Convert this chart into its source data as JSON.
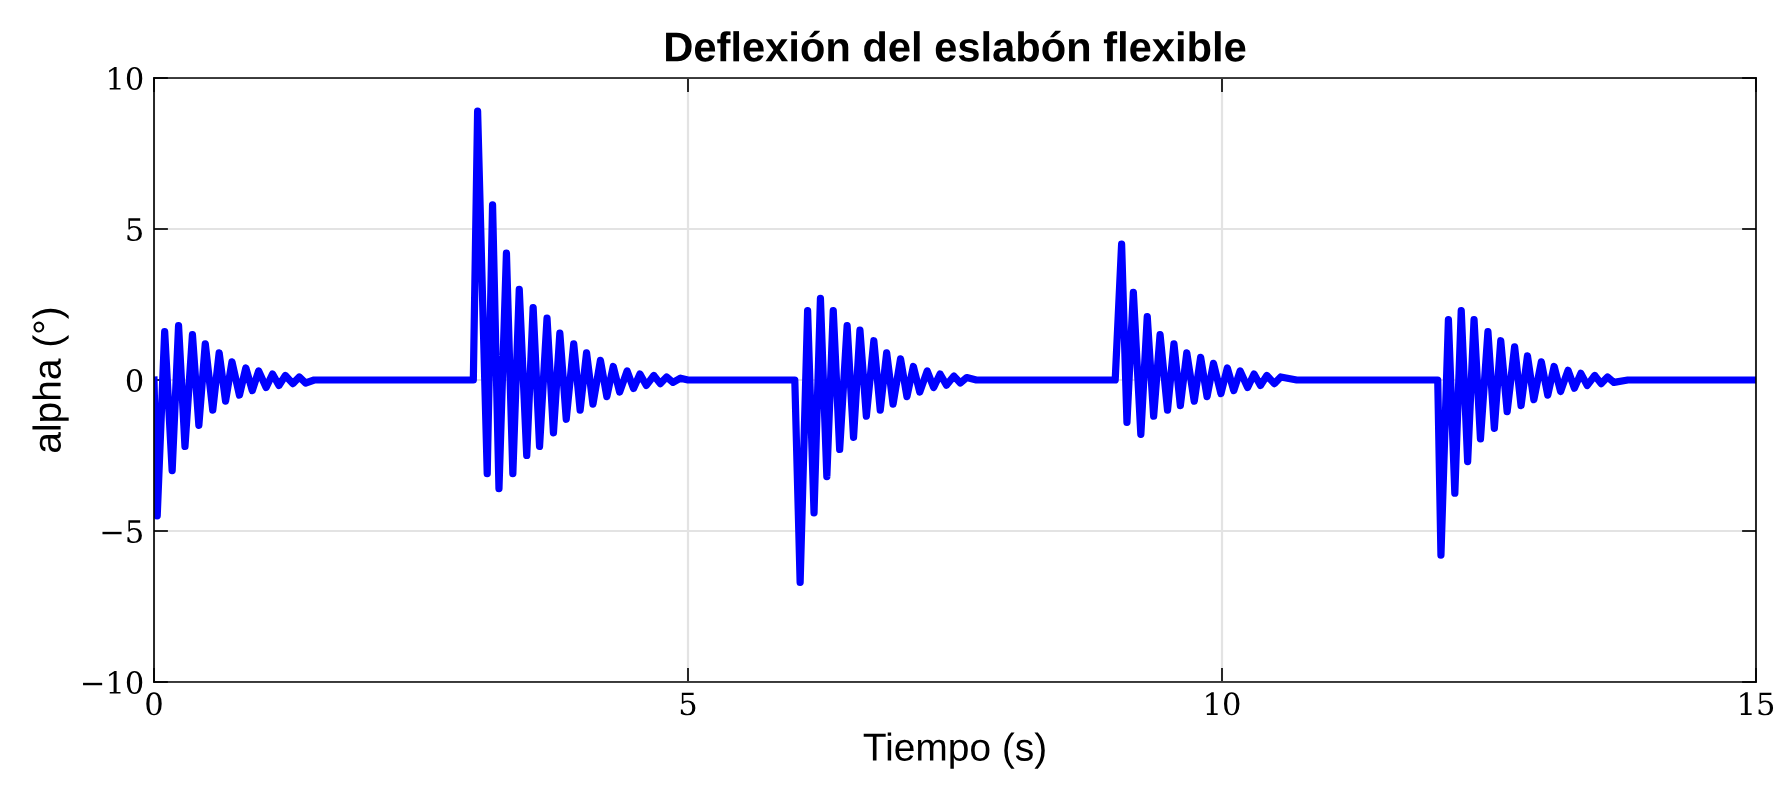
{
  "chart_data": {
    "type": "line",
    "title": "Deflexión del eslabón flexible",
    "xlabel": "Tiempo (s)",
    "ylabel": "alpha (°)",
    "xlim": [
      0,
      15
    ],
    "ylim": [
      -10,
      10
    ],
    "xticks": [
      0,
      5,
      10,
      15
    ],
    "yticks": [
      {
        "value": -10,
        "label": "−10"
      },
      {
        "value": -5,
        "label": "−5"
      },
      0,
      5,
      10
    ],
    "grid": true,
    "legend": false,
    "marker": "none",
    "line_style": "solid",
    "series": [
      {
        "color": "#0000ff",
        "x": [
          0,
          0.03,
          0.1,
          0.17,
          0.23,
          0.29,
          0.36,
          0.42,
          0.48,
          0.55,
          0.61,
          0.67,
          0.73,
          0.8,
          0.86,
          0.92,
          0.98,
          1.05,
          1.11,
          1.17,
          1.23,
          1.3,
          1.36,
          1.42,
          1.5,
          2.99,
          3.03,
          3.12,
          3.17,
          3.23,
          3.3,
          3.36,
          3.42,
          3.49,
          3.55,
          3.61,
          3.68,
          3.74,
          3.8,
          3.86,
          3.93,
          3.99,
          4.05,
          4.11,
          4.18,
          4.24,
          4.3,
          4.36,
          4.43,
          4.49,
          4.55,
          4.61,
          4.68,
          4.74,
          4.8,
          4.86,
          4.93,
          5.0,
          6.0,
          6.05,
          6.12,
          6.18,
          6.24,
          6.3,
          6.36,
          6.42,
          6.49,
          6.55,
          6.61,
          6.67,
          6.74,
          6.8,
          6.86,
          6.92,
          6.99,
          7.05,
          7.11,
          7.17,
          7.24,
          7.3,
          7.36,
          7.42,
          7.49,
          7.55,
          7.61,
          7.7,
          9.0,
          9.06,
          9.11,
          9.17,
          9.24,
          9.3,
          9.36,
          9.42,
          9.49,
          9.55,
          9.61,
          9.67,
          9.74,
          9.8,
          9.86,
          9.92,
          9.99,
          10.05,
          10.11,
          10.17,
          10.24,
          10.3,
          10.36,
          10.42,
          10.49,
          10.55,
          10.7,
          12.02,
          12.05,
          12.12,
          12.18,
          12.24,
          12.3,
          12.36,
          12.42,
          12.49,
          12.55,
          12.61,
          12.67,
          12.74,
          12.8,
          12.86,
          12.92,
          12.99,
          13.05,
          13.11,
          13.17,
          13.24,
          13.3,
          13.36,
          13.42,
          13.49,
          13.55,
          13.61,
          13.67,
          13.8,
          15
        ],
        "values": [
          0,
          -4.5,
          1.6,
          -3.0,
          1.8,
          -2.2,
          1.5,
          -1.5,
          1.2,
          -1.0,
          0.9,
          -0.7,
          0.6,
          -0.5,
          0.4,
          -0.35,
          0.3,
          -0.25,
          0.2,
          -0.18,
          0.15,
          -0.12,
          0.1,
          -0.1,
          0,
          0,
          8.9,
          -3.1,
          5.8,
          -3.6,
          4.2,
          -3.1,
          3.0,
          -2.5,
          2.4,
          -2.2,
          2.05,
          -1.75,
          1.55,
          -1.3,
          1.2,
          -1.0,
          0.9,
          -0.8,
          0.65,
          -0.55,
          0.45,
          -0.4,
          0.3,
          -0.28,
          0.2,
          -0.18,
          0.15,
          -0.12,
          0.1,
          -0.08,
          0.06,
          0,
          0,
          -6.7,
          2.3,
          -4.4,
          2.7,
          -3.2,
          2.3,
          -2.3,
          1.8,
          -1.9,
          1.65,
          -1.2,
          1.3,
          -1.0,
          0.9,
          -0.8,
          0.7,
          -0.55,
          0.45,
          -0.4,
          0.3,
          -0.25,
          0.2,
          -0.17,
          0.13,
          -0.1,
          0.08,
          0,
          0,
          4.5,
          -1.4,
          2.9,
          -1.8,
          2.1,
          -1.2,
          1.5,
          -1.0,
          1.2,
          -0.85,
          0.9,
          -0.7,
          0.75,
          -0.55,
          0.55,
          -0.45,
          0.4,
          -0.35,
          0.3,
          -0.25,
          0.2,
          -0.18,
          0.15,
          -0.12,
          0.1,
          0,
          0,
          -5.8,
          2.0,
          -3.75,
          2.3,
          -2.7,
          2.0,
          -1.95,
          1.6,
          -1.6,
          1.3,
          -1.05,
          1.1,
          -0.85,
          0.8,
          -0.65,
          0.6,
          -0.5,
          0.45,
          -0.38,
          0.32,
          -0.27,
          0.22,
          -0.18,
          0.15,
          -0.12,
          0.1,
          -0.08,
          0,
          0
        ]
      }
    ]
  }
}
